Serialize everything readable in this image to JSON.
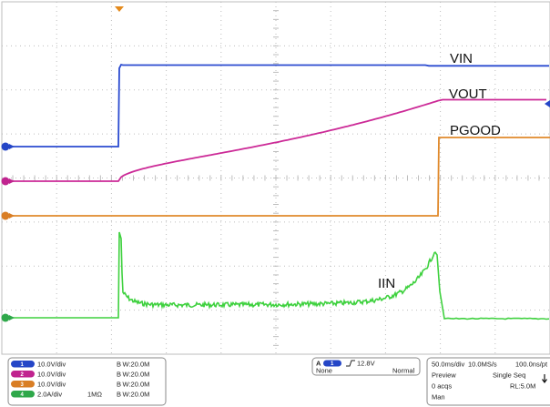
{
  "colors": {
    "background": "#ffffff",
    "grid": "#bdbdbd",
    "trigger_marker": "#e48a1c",
    "vin": "#2b4bd0",
    "vout": "#cc2a97",
    "pgood": "#e0892b",
    "iin": "#3fd13f",
    "ch1": "#2546c7",
    "ch2": "#c0248f",
    "ch3": "#d97e25",
    "ch4": "#2fa84a"
  },
  "traces": [
    {
      "name": "VIN",
      "color_key": "vin"
    },
    {
      "name": "VOUT",
      "color_key": "vout"
    },
    {
      "name": "PGOOD",
      "color_key": "pgood"
    },
    {
      "name": "IIN",
      "color_key": "iin"
    }
  ],
  "channels": [
    {
      "num": "1",
      "scale": "10.0V/div",
      "impedance": "",
      "bandwidth": "B W:20.0M",
      "color_key": "ch1"
    },
    {
      "num": "2",
      "scale": "10.0V/div",
      "impedance": "",
      "bandwidth": "B W:20.0M",
      "color_key": "ch2"
    },
    {
      "num": "3",
      "scale": "10.0V/div",
      "impedance": "",
      "bandwidth": "B W:20.0M",
      "color_key": "ch3"
    },
    {
      "num": "4",
      "scale": "2.0A/div",
      "impedance": "1MΩ",
      "bandwidth": "B W:20.0M",
      "color_key": "ch4"
    }
  ],
  "trigger": {
    "mode_letter": "A",
    "source": "1",
    "level": "12.8V",
    "coupling": "None",
    "mode": "Normal"
  },
  "acquisition": {
    "timebase": "50.0ms/div",
    "sample_rate": "10.0MS/s",
    "resolution": "100.0ns/pt",
    "state": "Preview",
    "seq": "Single Seq",
    "acqs": "0 acqs",
    "record_length": "RL:5.0M",
    "man": "Man"
  }
}
